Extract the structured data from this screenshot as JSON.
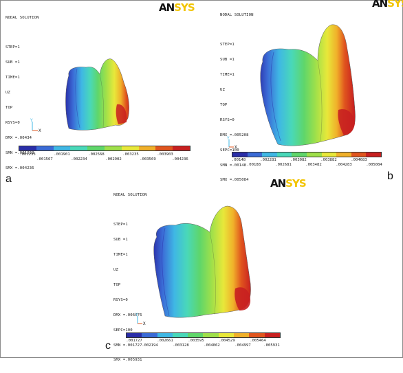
{
  "palette": [
    "#2a2ea8",
    "#3b6bd6",
    "#3fb7e4",
    "#49d8b9",
    "#5fd66a",
    "#9fe04a",
    "#e8e83a",
    "#f0b02a",
    "#e0551e",
    "#c82020"
  ],
  "panels": [
    {
      "label": "a",
      "logo": {
        "an": "AN",
        "sys": "SYS"
      },
      "header": [
        "NODAL SOLUTION",
        "",
        "STEP=1",
        "SUB =1",
        "TIME=1",
        "UZ",
        "TOP",
        "RSYS=0",
        "DMX =.00434",
        "SMN =.001233",
        "SMX =.004236"
      ],
      "ticks_top": [
        ".001233",
        ".001901",
        ".002568",
        ".003235",
        ".003903"
      ],
      "ticks_bottom": [
        ".001567",
        ".002234",
        ".002902",
        ".003569",
        ".004236"
      ]
    },
    {
      "label": "b",
      "logo": {
        "an": "AN",
        "sys": "SYS"
      },
      "header": [
        "NODAL SOLUTION",
        "",
        "STEP=1",
        "SUB =1",
        "TIME=1",
        "UZ",
        "TOP",
        "RSYS=0",
        "DMX =.005208",
        "SEPC=100",
        "SMN =.00148",
        "SMX =.005084"
      ],
      "ticks_top": [
        ".00148",
        ".002281",
        ".003082",
        ".003882",
        ".004683"
      ],
      "ticks_bottom": [
        ".00188",
        ".002681",
        ".003482",
        ".004283",
        ".005084"
      ]
    },
    {
      "label": "c",
      "logo": {
        "an": "AN",
        "sys": "SYS"
      },
      "header": [
        "NODAL SOLUTION",
        "",
        "STEP=1",
        "SUB =1",
        "TIME=1",
        "UZ",
        "TOP",
        "RSYS=0",
        "DMX =.006076",
        "SEPC=100",
        "SMN =.001727",
        "SMX =.005931"
      ],
      "ticks_top": [
        ".001727",
        ".002661",
        ".003595",
        ".004529",
        ".005464"
      ],
      "ticks_bottom": [
        ".002194",
        ".003128",
        ".004062",
        ".004997",
        ".005931"
      ]
    }
  ]
}
